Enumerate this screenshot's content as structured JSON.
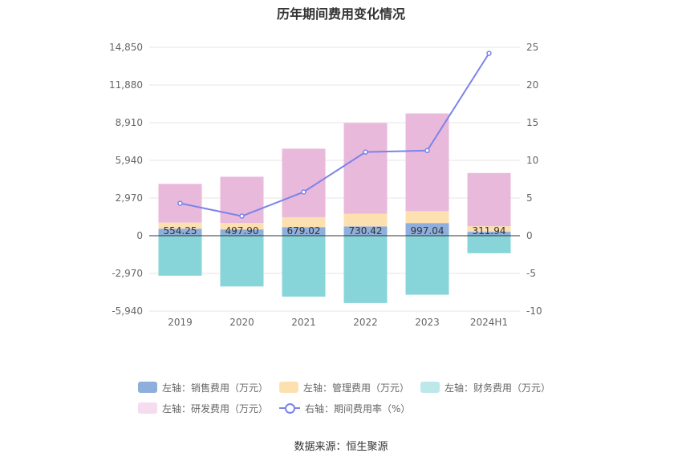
{
  "chart_data": {
    "type": "bar",
    "title": "历年期间费用变化情况",
    "categories": [
      "2019",
      "2020",
      "2021",
      "2022",
      "2023",
      "2024H1"
    ],
    "left_axis": {
      "ticks": [
        "14,850",
        "11,880",
        "8,910",
        "5,940",
        "2,970",
        "0",
        "-2,970",
        "-5,940"
      ],
      "ylim": [
        -5940,
        14850
      ]
    },
    "right_axis": {
      "ticks": [
        "25",
        "20",
        "15",
        "10",
        "5",
        "0",
        "-5",
        "-10"
      ],
      "ylim": [
        -10,
        25
      ]
    },
    "series": [
      {
        "name": "左轴：销售费用（万元）",
        "axis": "left",
        "kind": "stacked-bar",
        "color": "#8eaedc",
        "values": [
          554.25,
          497.9,
          679.02,
          730.42,
          997.04,
          311.94
        ],
        "labels": [
          "554.25",
          "497.90",
          "679.02",
          "730.42",
          "997.04",
          "311.94"
        ]
      },
      {
        "name": "左轴：管理费用（万元）",
        "axis": "left",
        "kind": "stacked-bar",
        "color": "#fde0b0",
        "values": [
          480,
          500,
          780,
          1000,
          940,
          430
        ]
      },
      {
        "name": "左轴：财务费用（万元）",
        "axis": "left",
        "kind": "stacked-bar",
        "color": "#87d5d8",
        "values": [
          -3150,
          -4000,
          -4800,
          -5300,
          -4650,
          -1380
        ]
      },
      {
        "name": "左轴：研发费用（万元）",
        "axis": "left",
        "kind": "stacked-bar",
        "color": "#e8b9da",
        "values": [
          3050,
          3650,
          5400,
          7150,
          7700,
          4200
        ]
      },
      {
        "name": "右轴：期间费用率（%）",
        "axis": "right",
        "kind": "line",
        "color": "#7b83eb",
        "values": [
          4.3,
          2.6,
          5.8,
          11.1,
          11.3,
          24.2
        ]
      }
    ],
    "grid": true,
    "legend_position": "bottom"
  },
  "source": "数据来源：恒生聚源"
}
